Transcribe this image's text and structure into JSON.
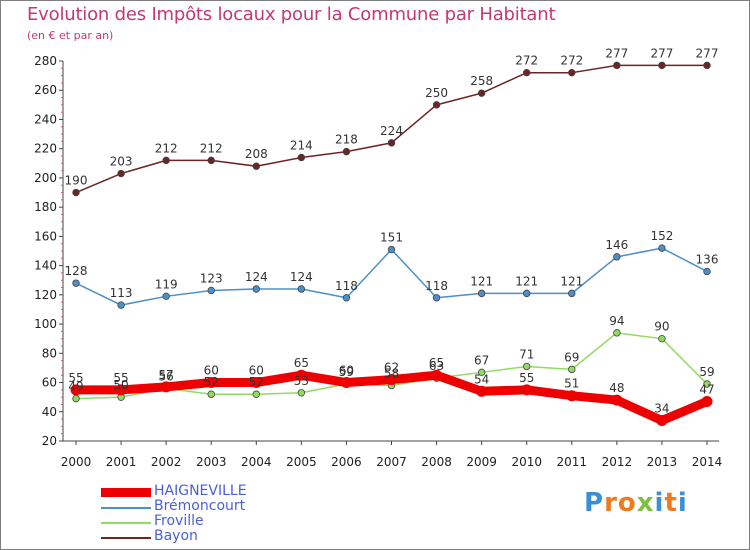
{
  "title": "Evolution des Impôts locaux pour la Commune par Habitant",
  "subtitle": "(en € et par an)",
  "logo": {
    "letters": [
      "P",
      "r",
      "o",
      "x",
      "i",
      "t",
      "i"
    ],
    "colors": [
      "#3b8fd8",
      "#f07a1e",
      "#f07a1e",
      "#7cc242",
      "#3b8fd8",
      "#f07a1e",
      "#3b8fd8"
    ]
  },
  "chart_data": {
    "type": "line",
    "title": "Evolution des Impôts locaux pour la Commune par Habitant",
    "subtitle": "(en € et par an)",
    "xlabel": "",
    "ylabel": "",
    "x": [
      "2000",
      "2001",
      "2002",
      "2003",
      "2004",
      "2005",
      "2006",
      "2007",
      "2008",
      "2009",
      "2010",
      "2011",
      "2012",
      "2013",
      "2014"
    ],
    "yticks": [
      "20",
      "40",
      "60",
      "80",
      "100",
      "120",
      "140",
      "160",
      "180",
      "200",
      "220",
      "240",
      "260",
      "280"
    ],
    "ylim": [
      20,
      280
    ],
    "grid": false,
    "legend_position": "bottom-left",
    "series": [
      {
        "name": "HAIGNEVILLE",
        "color": "#ee0000",
        "values": [
          55,
          55,
          57,
          60,
          60,
          65,
          60,
          62,
          65,
          54,
          55,
          51,
          48,
          34,
          47
        ]
      },
      {
        "name": "Brémoncourt",
        "color": "#4d8fc8",
        "values": [
          128,
          113,
          119,
          123,
          124,
          124,
          118,
          151,
          118,
          121,
          121,
          121,
          146,
          152,
          136
        ]
      },
      {
        "name": "Froville",
        "color": "#8fdc60",
        "values": [
          49,
          50,
          56,
          52,
          52,
          53,
          59,
          58,
          63,
          67,
          71,
          69,
          94,
          90,
          59
        ]
      },
      {
        "name": "Bayon",
        "color": "#6b2525",
        "values": [
          190,
          203,
          212,
          212,
          208,
          214,
          218,
          224,
          250,
          258,
          272,
          272,
          277,
          277,
          277
        ]
      }
    ]
  }
}
